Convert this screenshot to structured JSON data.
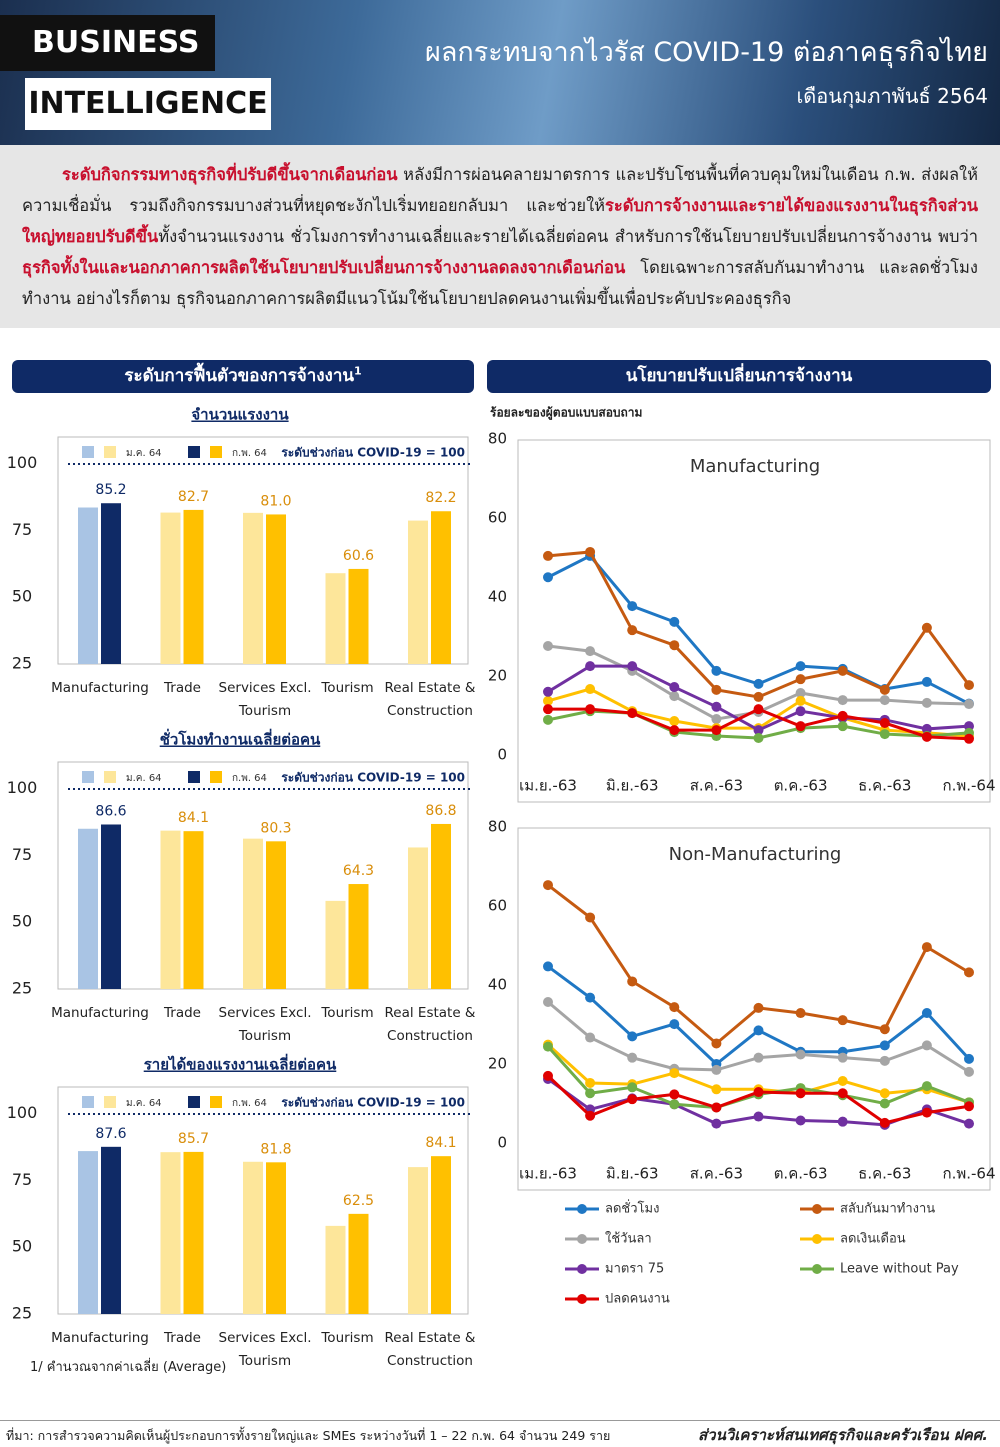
{
  "header": {
    "brand_top": "BUSINESS",
    "brand_bottom": "INTELLIGENCE",
    "title": "ผลกระทบจากไวรัส COVID-19 ต่อภาคธุรกิจไทย",
    "subtitle": "เดือนกุมภาพันธ์ 2564"
  },
  "intro": {
    "segments": [
      {
        "text": "ระดับกิจกรรมทางธุรกิจที่ปรับดีขึ้นจากเดือนก่อน",
        "emphasis": true
      },
      {
        "text": " หลังมีการผ่อนคลายมาตรการ และปรับโซนพื้นที่ควบคุมใหม่ในเดือน ก.พ. ส่งผลให้ความเชื่อมั่น รวมถึงกิจกรรมบางส่วนที่หยุดชะงักไปเริ่มทยอยกลับมา และช่วยให้",
        "emphasis": false
      },
      {
        "text": "ระดับการจ้างงานและรายได้ของแรงงานในธุรกิจส่วนใหญ่ทยอยปรับดีขึ้น",
        "emphasis": true
      },
      {
        "text": "ทั้งจำนวนแรงงาน ชั่วโมงการทำงานเฉลี่ยและรายได้เฉลี่ยต่อคน สำหรับการใช้นโยบายปรับเปลี่ยนการจ้างงาน พบว่า",
        "emphasis": false
      },
      {
        "text": "ธุรกิจทั้งในและนอกภาคการผลิตใช้นโยบายปรับเปลี่ยนการจ้างงานลดลงจากเดือนก่อน",
        "emphasis": true
      },
      {
        "text": " โดยเฉพาะการสลับกันมาทำงาน และลดชั่วโมงทำงาน อย่างไรก็ตาม ธุรกิจนอกภาคการผลิตมีแนวโน้มใช้นโยบายปลดคนงานเพิ่มขึ้นเพื่อประคับประคองธุรกิจ",
        "emphasis": false
      }
    ]
  },
  "panels": {
    "left": {
      "title": "ระดับการฟื้นตัวของการจ้างงาน",
      "title_sup": "1"
    },
    "right": {
      "title": "นโยบายปรับเปลี่ยนการจ้างงาน"
    }
  },
  "chart_data": [
    {
      "type": "bar",
      "title": "จำนวนแรงงาน",
      "note": "ระดับช่วงก่อน COVID-19 = 100",
      "categories": [
        [
          "Manufacturing"
        ],
        [
          "Trade"
        ],
        [
          "Services Excl.",
          "Tourism"
        ],
        [
          "Tourism"
        ],
        [
          "Real Estate &",
          "Construction"
        ]
      ],
      "ylim": [
        25,
        110
      ],
      "yticks": [
        25,
        50,
        75,
        100
      ],
      "series": [
        {
          "name": "ม.ค. 64",
          "colors": [
            "#a9c4e4",
            "#fde69a",
            "#fde69a",
            "#fde69a",
            "#fde69a"
          ],
          "values": [
            83.6,
            81.7,
            81.6,
            59,
            78.7
          ]
        },
        {
          "name": "ก.พ. 64",
          "colors": [
            "#0f2a66",
            "#ffc000",
            "#ffc000",
            "#ffc000",
            "#ffc000"
          ],
          "values": [
            85.2,
            82.7,
            81.0,
            60.6,
            82.2
          ],
          "value_labels": [
            "85.2",
            "82.7",
            "81.0",
            "60.6",
            "82.2"
          ],
          "label_colors": [
            "#0f2a66",
            "#d98e0b",
            "#d98e0b",
            "#d98e0b",
            "#d98e0b"
          ]
        }
      ]
    },
    {
      "type": "bar",
      "title": "ชั่วโมงทำงานเฉลี่ยต่อคน",
      "note": "ระดับช่วงก่อน COVID-19 = 100",
      "categories": [
        [
          "Manufacturing"
        ],
        [
          "Trade"
        ],
        [
          "Services Excl.",
          "Tourism"
        ],
        [
          "Tourism"
        ],
        [
          "Real Estate &",
          "Construction"
        ]
      ],
      "ylim": [
        25,
        110
      ],
      "yticks": [
        25,
        50,
        75,
        100
      ],
      "series": [
        {
          "name": "ม.ค. 64",
          "colors": [
            "#a9c4e4",
            "#fde69a",
            "#fde69a",
            "#fde69a",
            "#fde69a"
          ],
          "values": [
            85,
            84.3,
            81.3,
            58,
            78
          ]
        },
        {
          "name": "ก.พ. 64",
          "colors": [
            "#0f2a66",
            "#ffc000",
            "#ffc000",
            "#ffc000",
            "#ffc000"
          ],
          "values": [
            86.6,
            84.1,
            80.3,
            64.3,
            86.8
          ],
          "value_labels": [
            "86.6",
            "84.1",
            "80.3",
            "64.3",
            "86.8"
          ],
          "label_colors": [
            "#0f2a66",
            "#d98e0b",
            "#d98e0b",
            "#d98e0b",
            "#d98e0b"
          ]
        }
      ]
    },
    {
      "type": "bar",
      "title": "รายได้ของแรงงานเฉลี่ยต่อคน",
      "note": "ระดับช่วงก่อน COVID-19 = 100",
      "categories": [
        [
          "Manufacturing"
        ],
        [
          "Trade"
        ],
        [
          "Services Excl.",
          "Tourism"
        ],
        [
          "Tourism"
        ],
        [
          "Real Estate &",
          "Construction"
        ]
      ],
      "ylim": [
        25,
        110
      ],
      "yticks": [
        25,
        50,
        75,
        100
      ],
      "series": [
        {
          "name": "ม.ค. 64",
          "colors": [
            "#a9c4e4",
            "#fde69a",
            "#fde69a",
            "#fde69a",
            "#fde69a"
          ],
          "values": [
            86,
            85.6,
            82,
            58,
            80
          ]
        },
        {
          "name": "ก.พ. 64",
          "colors": [
            "#0f2a66",
            "#ffc000",
            "#ffc000",
            "#ffc000",
            "#ffc000"
          ],
          "values": [
            87.6,
            85.7,
            81.8,
            62.5,
            84.1
          ],
          "value_labels": [
            "87.6",
            "85.7",
            "81.8",
            "62.5",
            "84.1"
          ],
          "label_colors": [
            "#0f2a66",
            "#d98e0b",
            "#d98e0b",
            "#d98e0b",
            "#d98e0b"
          ]
        }
      ]
    },
    {
      "type": "line",
      "title": "Manufacturing",
      "y_label": "ร้อยละของผู้ตอบแบบสอบถาม",
      "categories": [
        "เม.ย.-63",
        null,
        "มิ.ย.-63",
        null,
        "ส.ค.-63",
        null,
        "ต.ค.-63",
        null,
        "ธ.ค.-63",
        null,
        "ก.พ.-64"
      ],
      "ylim": [
        0,
        80
      ],
      "yticks": [
        0,
        20,
        40,
        60,
        80
      ],
      "series": [
        {
          "name": "ลดชั่วโมง",
          "color": "#1f77c4",
          "values": [
            45,
            50.4,
            37.7,
            33.7,
            21.3,
            18,
            22.5,
            21.8,
            16.7,
            18.5,
            13
          ]
        },
        {
          "name": "สลับกันมาทำงาน",
          "color": "#c55a11",
          "values": [
            50.4,
            51.4,
            31.6,
            27.8,
            16.5,
            14.7,
            19.2,
            21.3,
            16.5,
            32.2,
            17.7
          ]
        },
        {
          "name": "ใช้วันลา",
          "color": "#a5a5a5",
          "values": [
            27.6,
            26.3,
            21.3,
            14.9,
            9.1,
            10.9,
            15.7,
            13.9,
            13.9,
            13.2,
            12.9
          ]
        },
        {
          "name": "ลดเงินเดือน",
          "color": "#ffc000",
          "values": [
            13.7,
            16.7,
            11.1,
            8.6,
            6.8,
            6.8,
            13.7,
            9.4,
            6.3,
            5.6,
            4.8
          ]
        },
        {
          "name": "มาตรา 75",
          "color": "#7030a0",
          "values": [
            16,
            22.5,
            22.5,
            17.2,
            12.2,
            6.3,
            11.1,
            9.4,
            8.9,
            6.6,
            7.3
          ]
        },
        {
          "name": "Leave without Pay",
          "color": "#70ad47",
          "values": [
            8.9,
            11.1,
            10.6,
            5.8,
            4.8,
            4.3,
            6.8,
            7.3,
            5.3,
            4.8,
            5.6
          ]
        },
        {
          "name": "ปลดคนงาน",
          "color": "#e00000",
          "values": [
            11.6,
            11.6,
            10.6,
            6.3,
            6.3,
            11.6,
            7.3,
            9.9,
            8.1,
            4.6,
            4.1
          ]
        }
      ]
    },
    {
      "type": "line",
      "title": "Non-Manufacturing",
      "categories": [
        "เม.ย.-63",
        null,
        "มิ.ย.-63",
        null,
        "ส.ค.-63",
        null,
        "ต.ค.-63",
        null,
        "ธ.ค.-63",
        null,
        "ก.พ.-64"
      ],
      "ylim": [
        0,
        80
      ],
      "yticks": [
        0,
        20,
        40,
        60,
        80
      ],
      "series": [
        {
          "color": "#1f77c4",
          "values": [
            44.7,
            36.8,
            27,
            30.1,
            20,
            28.5,
            23.1,
            23.1,
            24.7,
            32.9,
            21.3
          ]
        },
        {
          "color": "#c55a11",
          "values": [
            65.3,
            57.1,
            40.9,
            34.4,
            25.2,
            34.2,
            32.9,
            31.1,
            28.8,
            49.6,
            43.2
          ]
        },
        {
          "color": "#a5a5a5",
          "values": [
            35.7,
            26.7,
            21.6,
            18.8,
            18.5,
            21.6,
            22.4,
            21.6,
            20.8,
            24.7,
            18
          ]
        },
        {
          "color": "#ffc000",
          "values": [
            24.9,
            15.2,
            14.9,
            17.7,
            13.6,
            13.6,
            12.6,
            15.7,
            12.6,
            13.6,
            10.3
          ]
        },
        {
          "color": "#7030a0",
          "values": [
            16.2,
            8.5,
            11.3,
            9.8,
            4.9,
            6.7,
            5.7,
            5.4,
            4.6,
            8.5,
            4.9
          ]
        },
        {
          "color": "#70ad47",
          "values": [
            24.4,
            12.6,
            14.1,
            9.8,
            9,
            12.3,
            13.9,
            12.1,
            10,
            14.4,
            10.3
          ]
        },
        {
          "color": "#e00000",
          "values": [
            17,
            6.9,
            11.1,
            12.3,
            9,
            12.9,
            12.6,
            12.6,
            5.1,
            7.7,
            9.3
          ]
        }
      ]
    }
  ],
  "footnote": "1/ คำนวณจากค่าเฉลี่ย (Average)",
  "footer": {
    "source": "ที่มา: การสำรวจความคิดเห็นผู้ประกอบการทั้งรายใหญ่และ SMEs ระหว่างวันที่ 1 – 22 ก.พ. 64 จำนวน 249 ราย",
    "unit": "ส่วนวิเคราะห์สนเทศธุรกิจและครัวเรือน ฝคศ."
  }
}
